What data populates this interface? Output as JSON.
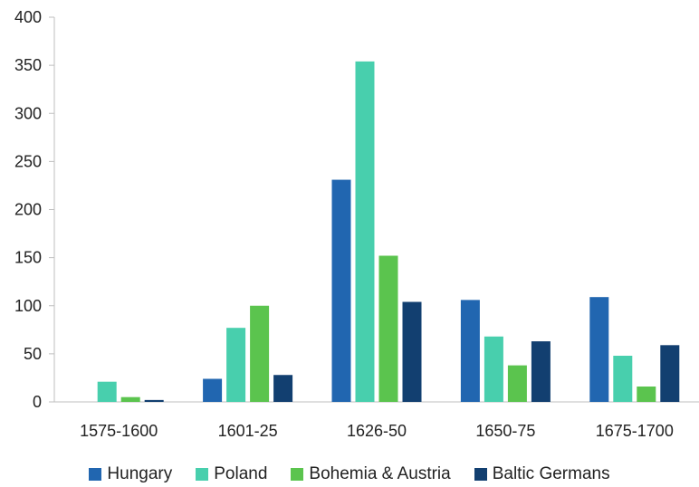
{
  "chart_data": {
    "type": "bar",
    "title": "",
    "xlabel": "",
    "ylabel": "",
    "ylim": [
      0,
      400
    ],
    "yticks": [
      0,
      50,
      100,
      150,
      200,
      250,
      300,
      350,
      400
    ],
    "grid": false,
    "legend_position": "bottom",
    "categories": [
      "1575-1600",
      "1601-25",
      "1626-50",
      "1650-75",
      "1675-1700"
    ],
    "series": [
      {
        "name": "Hungary",
        "color": "#2166b0",
        "values": [
          0,
          24,
          231,
          106,
          109
        ]
      },
      {
        "name": "Poland",
        "color": "#48cfad",
        "values": [
          21,
          77,
          354,
          68,
          48
        ]
      },
      {
        "name": "Bohemia & Austria",
        "color": "#5bc44e",
        "values": [
          5,
          100,
          152,
          38,
          16
        ]
      },
      {
        "name": "Baltic Germans",
        "color": "#123f70",
        "values": [
          2,
          28,
          104,
          63,
          59
        ]
      }
    ]
  }
}
